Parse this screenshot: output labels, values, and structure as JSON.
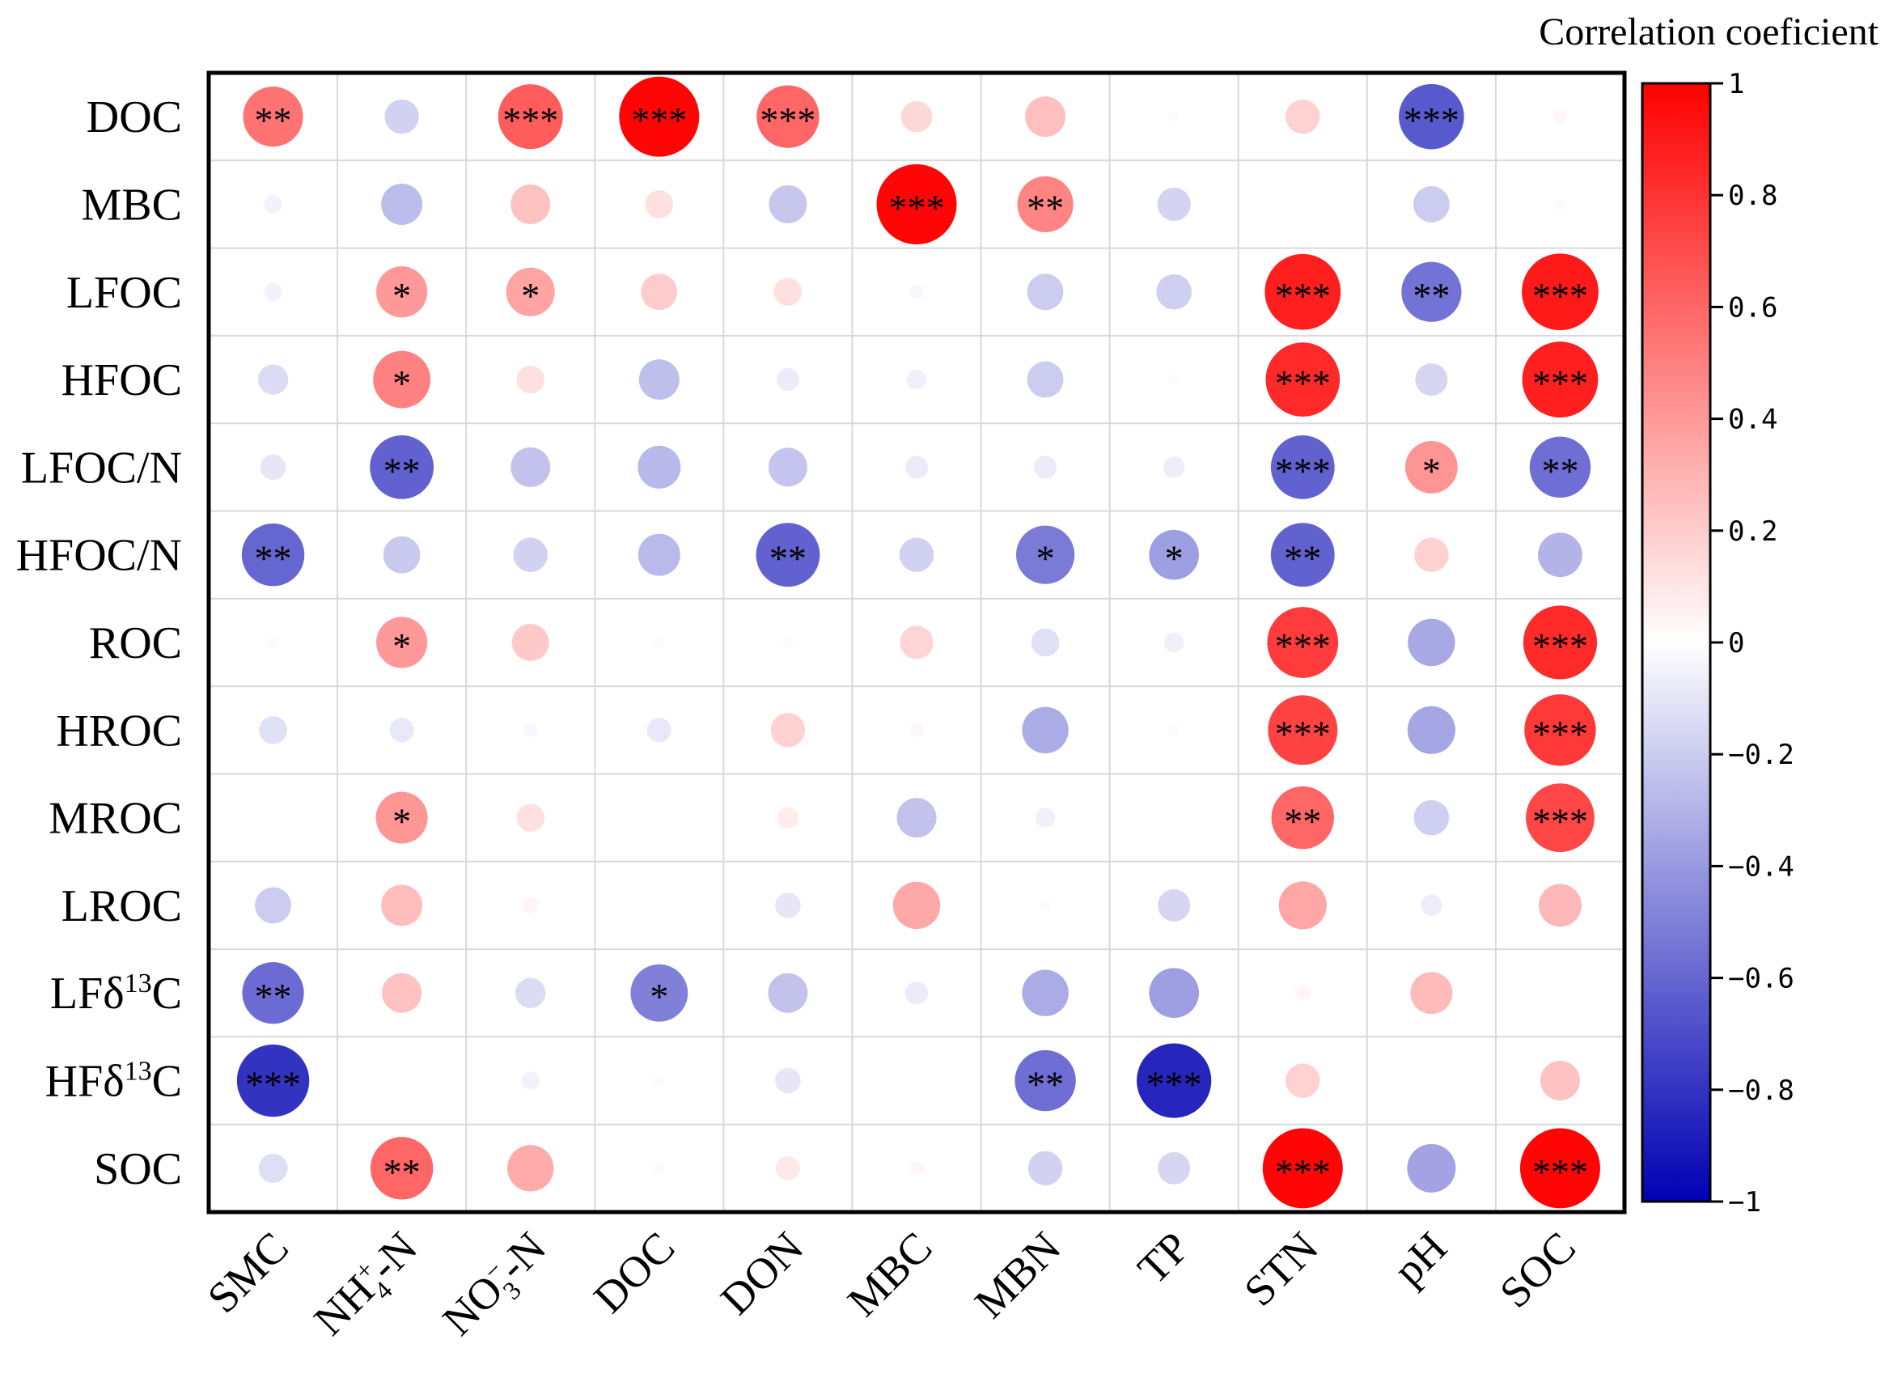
{
  "chart_data": {
    "type": "heatmap",
    "subtype": "correlation-circle-matrix",
    "rows": [
      {
        "text": "DOC"
      },
      {
        "text": "MBC"
      },
      {
        "text": "LFOC"
      },
      {
        "text": "HFOC"
      },
      {
        "text": "LFOC/N"
      },
      {
        "text": "HFOC/N"
      },
      {
        "text": "ROC"
      },
      {
        "text": "HROC"
      },
      {
        "text": "MROC"
      },
      {
        "text": "LROC"
      },
      {
        "text": "LFδ13C",
        "base": "LFδ",
        "sup": "13",
        "tail": "C"
      },
      {
        "text": "HFδ13C",
        "base": "HFδ",
        "sup": "13",
        "tail": "C"
      },
      {
        "text": "SOC"
      }
    ],
    "columns": [
      {
        "text": "SMC"
      },
      {
        "text": "NH4+-N",
        "base": "NH",
        "sub": "4",
        "sup": "+",
        "tail": "-N"
      },
      {
        "text": "NO3−-N",
        "base": "NO",
        "sub": "3",
        "sup": "−",
        "tail": "-N"
      },
      {
        "text": "DOC"
      },
      {
        "text": "DON"
      },
      {
        "text": "MBC"
      },
      {
        "text": "MBN"
      },
      {
        "text": "TP"
      },
      {
        "text": "STN"
      },
      {
        "text": "pH"
      },
      {
        "text": "SOC"
      }
    ],
    "values": [
      [
        0.55,
        -0.18,
        0.64,
        0.98,
        0.6,
        0.15,
        0.25,
        0.02,
        0.18,
        -0.65,
        0.03
      ],
      [
        -0.05,
        -0.26,
        0.24,
        0.12,
        -0.22,
        0.98,
        0.48,
        -0.17,
        0.0,
        -0.2,
        0.02
      ],
      [
        -0.05,
        0.4,
        0.36,
        0.2,
        0.12,
        -0.03,
        -0.2,
        -0.19,
        0.88,
        -0.55,
        0.9
      ],
      [
        -0.14,
        0.5,
        0.12,
        -0.25,
        -0.08,
        -0.06,
        -0.2,
        0.02,
        0.84,
        -0.16,
        0.88
      ],
      [
        -0.1,
        -0.62,
        -0.24,
        -0.28,
        -0.23,
        -0.08,
        -0.08,
        -0.07,
        -0.62,
        0.42,
        -0.57
      ],
      [
        -0.6,
        -0.21,
        -0.18,
        -0.27,
        -0.62,
        -0.18,
        -0.52,
        -0.38,
        -0.62,
        0.18,
        -0.3
      ],
      [
        0.02,
        0.4,
        0.21,
        0.02,
        0.02,
        0.17,
        -0.12,
        -0.06,
        0.77,
        -0.34,
        0.83
      ],
      [
        -0.12,
        -0.09,
        -0.03,
        -0.09,
        0.18,
        0.03,
        -0.33,
        0.02,
        0.74,
        -0.35,
        0.78
      ],
      [
        0.0,
        0.41,
        0.12,
        0.0,
        0.07,
        -0.24,
        -0.06,
        0.0,
        0.6,
        -0.19,
        0.72
      ],
      [
        -0.2,
        0.26,
        0.04,
        0.0,
        -0.1,
        0.34,
        0.02,
        -0.16,
        0.35,
        -0.07,
        0.28
      ],
      [
        -0.58,
        0.24,
        -0.14,
        -0.5,
        -0.24,
        -0.08,
        -0.33,
        -0.38,
        0.04,
        0.27,
        0.0
      ],
      [
        -0.8,
        0.0,
        -0.05,
        0.02,
        -0.1,
        0.0,
        -0.57,
        -0.85,
        0.18,
        0.0,
        0.24
      ],
      [
        -0.13,
        0.6,
        0.33,
        0.02,
        0.09,
        0.03,
        -0.18,
        -0.16,
        0.98,
        -0.36,
        0.98
      ]
    ],
    "significance": [
      [
        "**",
        "",
        "***",
        "***",
        "***",
        "",
        "",
        "",
        "",
        "***",
        ""
      ],
      [
        "",
        "",
        "",
        "",
        "",
        "***",
        "**",
        "",
        "",
        "",
        ""
      ],
      [
        "",
        "*",
        "*",
        "",
        "",
        "",
        "",
        "",
        "***",
        "**",
        "***"
      ],
      [
        "",
        "*",
        "",
        "",
        "",
        "",
        "",
        "",
        "***",
        "",
        "***"
      ],
      [
        "",
        "**",
        "",
        "",
        "",
        "",
        "",
        "",
        "***",
        "*",
        "**"
      ],
      [
        "**",
        "",
        "",
        "",
        "**",
        "",
        "*",
        "*",
        "**",
        "",
        ""
      ],
      [
        "",
        "*",
        "",
        "",
        "",
        "",
        "",
        "",
        "***",
        "",
        "***"
      ],
      [
        "",
        "",
        "",
        "",
        "",
        "",
        "",
        "",
        "***",
        "",
        "***"
      ],
      [
        "",
        "*",
        "",
        "",
        "",
        "",
        "",
        "",
        "**",
        "",
        "***"
      ],
      [
        "",
        "",
        "",
        "",
        "",
        "",
        "",
        "",
        "",
        "",
        ""
      ],
      [
        "**",
        "",
        "",
        "*",
        "",
        "",
        "",
        "",
        "",
        "",
        ""
      ],
      [
        "***",
        "",
        "",
        "",
        "",
        "",
        "**",
        "***",
        "",
        "",
        ""
      ],
      [
        "",
        "**",
        "",
        "",
        "",
        "",
        "",
        "",
        "***",
        "",
        "***"
      ]
    ],
    "colorbar": {
      "title": "Correlation coeficient",
      "range": [
        -1,
        1
      ],
      "ticks": [
        1,
        0.8,
        0.6,
        0.4,
        0.2,
        0,
        -0.2,
        -0.4,
        -0.6,
        -0.8,
        -1
      ],
      "tick_labels": [
        "1",
        "0.8",
        "0.6",
        "0.4",
        "0.2",
        "0",
        "−0.2",
        "−0.4",
        "−0.6",
        "−0.8",
        "−1"
      ],
      "colors": {
        "negative": "#0000b3",
        "zero": "#ffffff",
        "positive": "#ff0000"
      }
    },
    "grid": true
  }
}
